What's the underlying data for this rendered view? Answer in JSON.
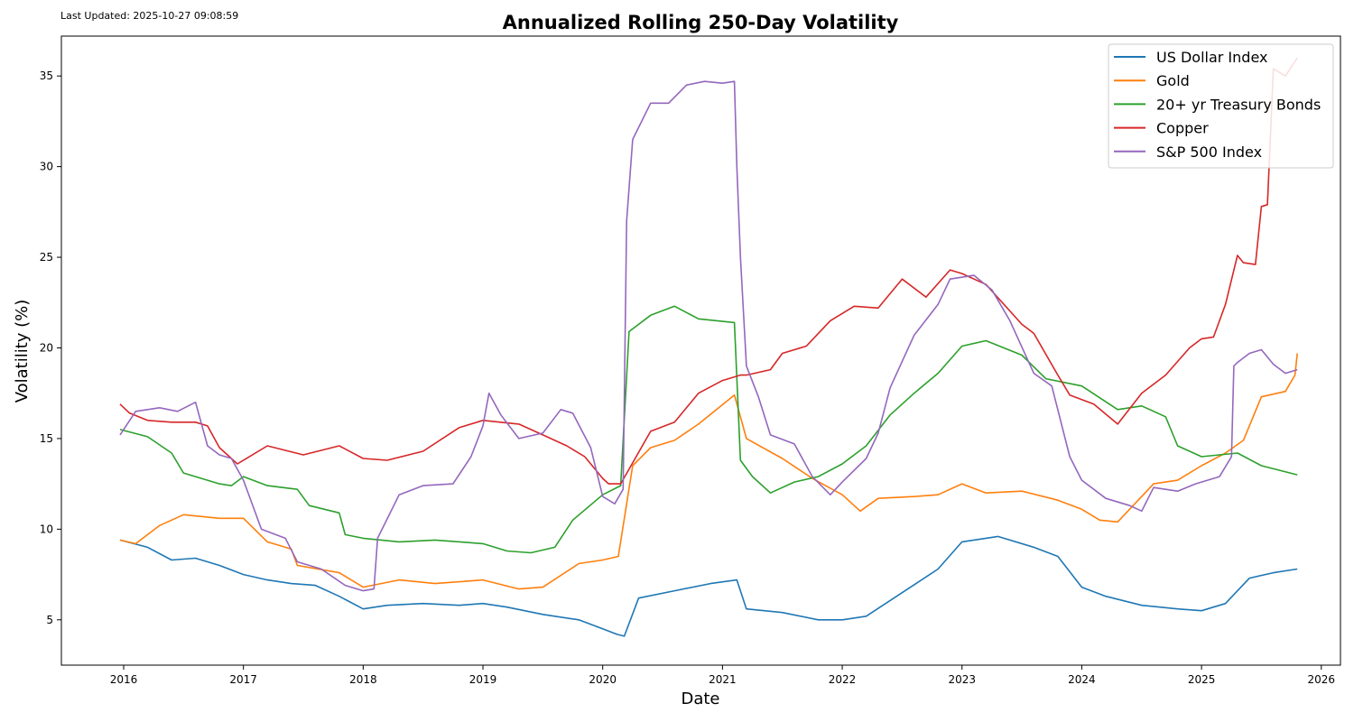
{
  "last_updated": "Last Updated: 2025-10-27 09:08:59",
  "chart_data": {
    "type": "line",
    "title": "Annualized Rolling 250-Day Volatility",
    "xlabel": "Date",
    "ylabel": "Volatility (%)",
    "xlim": [
      2015.48,
      2026.16
    ],
    "ylim": [
      2.5,
      37.2
    ],
    "xticks": [
      2016,
      2017,
      2018,
      2019,
      2020,
      2021,
      2022,
      2023,
      2024,
      2025,
      2026
    ],
    "yticks": [
      5,
      10,
      15,
      20,
      25,
      30,
      35
    ],
    "grid": false,
    "legend": "top-right",
    "series": [
      {
        "name": "US Dollar Index",
        "color": "#1f77b4",
        "x": [
          2015.97,
          2016.2,
          2016.4,
          2016.6,
          2016.8,
          2017.0,
          2017.2,
          2017.4,
          2017.6,
          2017.8,
          2018.0,
          2018.2,
          2018.5,
          2018.8,
          2019.0,
          2019.2,
          2019.5,
          2019.8,
          2020.0,
          2020.12,
          2020.18,
          2020.3,
          2020.6,
          2020.9,
          2021.12,
          2021.2,
          2021.5,
          2021.8,
          2022.0,
          2022.2,
          2022.5,
          2022.8,
          2023.0,
          2023.3,
          2023.6,
          2023.8,
          2024.0,
          2024.2,
          2024.5,
          2024.8,
          2025.0,
          2025.2,
          2025.4,
          2025.6,
          2025.8
        ],
        "y": [
          9.4,
          9.0,
          8.3,
          8.4,
          8.0,
          7.5,
          7.2,
          7.0,
          6.9,
          6.3,
          5.6,
          5.8,
          5.9,
          5.8,
          5.9,
          5.7,
          5.3,
          5.0,
          4.5,
          4.2,
          4.1,
          6.2,
          6.6,
          7.0,
          7.2,
          5.6,
          5.4,
          5.0,
          5.0,
          5.2,
          6.5,
          7.8,
          9.3,
          9.6,
          9.0,
          8.5,
          6.8,
          6.3,
          5.8,
          5.6,
          5.5,
          5.9,
          7.3,
          7.6,
          7.8
        ]
      },
      {
        "name": "Gold",
        "color": "#ff7f0e",
        "x": [
          2015.97,
          2016.1,
          2016.3,
          2016.5,
          2016.8,
          2017.0,
          2017.2,
          2017.4,
          2017.45,
          2017.8,
          2018.0,
          2018.3,
          2018.6,
          2019.0,
          2019.3,
          2019.5,
          2019.8,
          2020.0,
          2020.13,
          2020.25,
          2020.4,
          2020.6,
          2020.8,
          2021.1,
          2021.2,
          2021.5,
          2021.75,
          2022.0,
          2022.15,
          2022.3,
          2022.6,
          2022.8,
          2023.0,
          2023.2,
          2023.5,
          2023.8,
          2024.0,
          2024.15,
          2024.3,
          2024.6,
          2024.8,
          2025.0,
          2025.2,
          2025.35,
          2025.5,
          2025.7,
          2025.78,
          2025.8
        ],
        "y": [
          9.4,
          9.2,
          10.2,
          10.8,
          10.6,
          10.6,
          9.3,
          8.9,
          8.0,
          7.6,
          6.8,
          7.2,
          7.0,
          7.2,
          6.7,
          6.8,
          8.1,
          8.3,
          8.5,
          13.5,
          14.5,
          14.9,
          15.8,
          17.4,
          15.0,
          13.9,
          12.8,
          11.9,
          11.0,
          11.7,
          11.8,
          11.9,
          12.5,
          12.0,
          12.1,
          11.6,
          11.1,
          10.5,
          10.4,
          12.5,
          12.7,
          13.5,
          14.2,
          14.9,
          17.3,
          17.6,
          18.5,
          19.7
        ]
      },
      {
        "name": "20+ yr Treasury Bonds",
        "color": "#2ca02c",
        "x": [
          2015.97,
          2016.2,
          2016.4,
          2016.5,
          2016.8,
          2016.9,
          2017.0,
          2017.2,
          2017.45,
          2017.55,
          2017.8,
          2017.85,
          2018.0,
          2018.3,
          2018.6,
          2019.0,
          2019.2,
          2019.4,
          2019.6,
          2019.75,
          2020.0,
          2020.15,
          2020.22,
          2020.4,
          2020.6,
          2020.8,
          2021.1,
          2021.15,
          2021.25,
          2021.4,
          2021.6,
          2021.8,
          2022.0,
          2022.2,
          2022.4,
          2022.6,
          2022.8,
          2023.0,
          2023.2,
          2023.5,
          2023.7,
          2024.0,
          2024.3,
          2024.5,
          2024.7,
          2024.8,
          2025.0,
          2025.3,
          2025.5,
          2025.8
        ],
        "y": [
          15.5,
          15.1,
          14.2,
          13.1,
          12.5,
          12.4,
          12.9,
          12.4,
          12.2,
          11.3,
          10.9,
          9.7,
          9.5,
          9.3,
          9.4,
          9.2,
          8.8,
          8.7,
          9.0,
          10.5,
          11.9,
          12.4,
          20.9,
          21.8,
          22.3,
          21.6,
          21.4,
          13.8,
          12.9,
          12.0,
          12.6,
          12.9,
          13.6,
          14.6,
          16.3,
          17.5,
          18.6,
          20.1,
          20.4,
          19.6,
          18.3,
          17.9,
          16.6,
          16.8,
          16.2,
          14.6,
          14.0,
          14.2,
          13.5,
          13.0
        ]
      },
      {
        "name": "Copper",
        "color": "#d62728",
        "x": [
          2015.97,
          2016.05,
          2016.2,
          2016.4,
          2016.6,
          2016.7,
          2016.8,
          2016.95,
          2017.2,
          2017.5,
          2017.8,
          2018.0,
          2018.2,
          2018.5,
          2018.8,
          2019.0,
          2019.3,
          2019.5,
          2019.7,
          2019.85,
          2020.0,
          2020.05,
          2020.15,
          2020.4,
          2020.6,
          2020.8,
          2021.0,
          2021.15,
          2021.2,
          2021.4,
          2021.5,
          2021.7,
          2021.9,
          2022.1,
          2022.3,
          2022.5,
          2022.7,
          2022.9,
          2023.0,
          2023.2,
          2023.5,
          2023.6,
          2023.8,
          2023.9,
          2024.1,
          2024.3,
          2024.5,
          2024.7,
          2024.9,
          2025.0,
          2025.1,
          2025.15,
          2025.2,
          2025.3,
          2025.35,
          2025.45,
          2025.5,
          2025.55,
          2025.6,
          2025.7,
          2025.8
        ],
        "y": [
          16.9,
          16.4,
          16.0,
          15.9,
          15.9,
          15.7,
          14.5,
          13.6,
          14.6,
          14.1,
          14.6,
          13.9,
          13.8,
          14.3,
          15.6,
          16.0,
          15.8,
          15.2,
          14.6,
          14.0,
          12.8,
          12.5,
          12.5,
          15.4,
          15.9,
          17.5,
          18.2,
          18.5,
          18.5,
          18.8,
          19.7,
          20.1,
          21.5,
          22.3,
          22.2,
          23.8,
          22.8,
          24.3,
          24.1,
          23.5,
          21.3,
          20.8,
          18.5,
          17.4,
          16.9,
          15.8,
          17.5,
          18.5,
          20.0,
          20.5,
          20.6,
          21.5,
          22.4,
          25.1,
          24.7,
          24.6,
          27.8,
          27.9,
          35.4,
          35.0,
          36.0
        ]
      },
      {
        "name": "S&P 500 Index",
        "color": "#9467bd",
        "x": [
          2015.97,
          2016.1,
          2016.3,
          2016.45,
          2016.6,
          2016.7,
          2016.8,
          2016.9,
          2017.0,
          2017.15,
          2017.35,
          2017.45,
          2017.65,
          2017.85,
          2018.0,
          2018.09,
          2018.12,
          2018.3,
          2018.5,
          2018.75,
          2018.9,
          2019.0,
          2019.05,
          2019.15,
          2019.3,
          2019.5,
          2019.65,
          2019.75,
          2019.9,
          2020.0,
          2020.1,
          2020.17,
          2020.2,
          2020.25,
          2020.4,
          2020.55,
          2020.7,
          2020.85,
          2021.0,
          2021.1,
          2021.12,
          2021.15,
          2021.2,
          2021.3,
          2021.4,
          2021.6,
          2021.75,
          2021.9,
          2022.0,
          2022.2,
          2022.3,
          2022.4,
          2022.6,
          2022.8,
          2022.9,
          2023.1,
          2023.25,
          2023.4,
          2023.6,
          2023.75,
          2023.9,
          2024.0,
          2024.2,
          2024.4,
          2024.5,
          2024.6,
          2024.8,
          2024.95,
          2025.15,
          2025.25,
          2025.27,
          2025.3,
          2025.4,
          2025.5,
          2025.6,
          2025.7,
          2025.8
        ],
        "y": [
          15.2,
          16.5,
          16.7,
          16.5,
          17.0,
          14.6,
          14.1,
          13.9,
          12.7,
          10.0,
          9.5,
          8.2,
          7.8,
          6.9,
          6.6,
          6.7,
          9.5,
          11.9,
          12.4,
          12.5,
          14.0,
          15.7,
          17.5,
          16.3,
          15.0,
          15.3,
          16.6,
          16.4,
          14.5,
          11.8,
          11.4,
          12.2,
          27.0,
          31.5,
          33.5,
          33.5,
          34.5,
          34.7,
          34.6,
          34.7,
          30.0,
          25.0,
          19.0,
          17.3,
          15.2,
          14.7,
          12.9,
          11.9,
          12.6,
          13.9,
          15.3,
          17.8,
          20.7,
          22.4,
          23.8,
          24.0,
          23.2,
          21.5,
          18.6,
          17.9,
          14.0,
          12.7,
          11.7,
          11.3,
          11.0,
          12.3,
          12.1,
          12.5,
          12.9,
          14.0,
          19.0,
          19.2,
          19.7,
          19.9,
          19.1,
          18.6,
          18.8
        ]
      }
    ]
  }
}
